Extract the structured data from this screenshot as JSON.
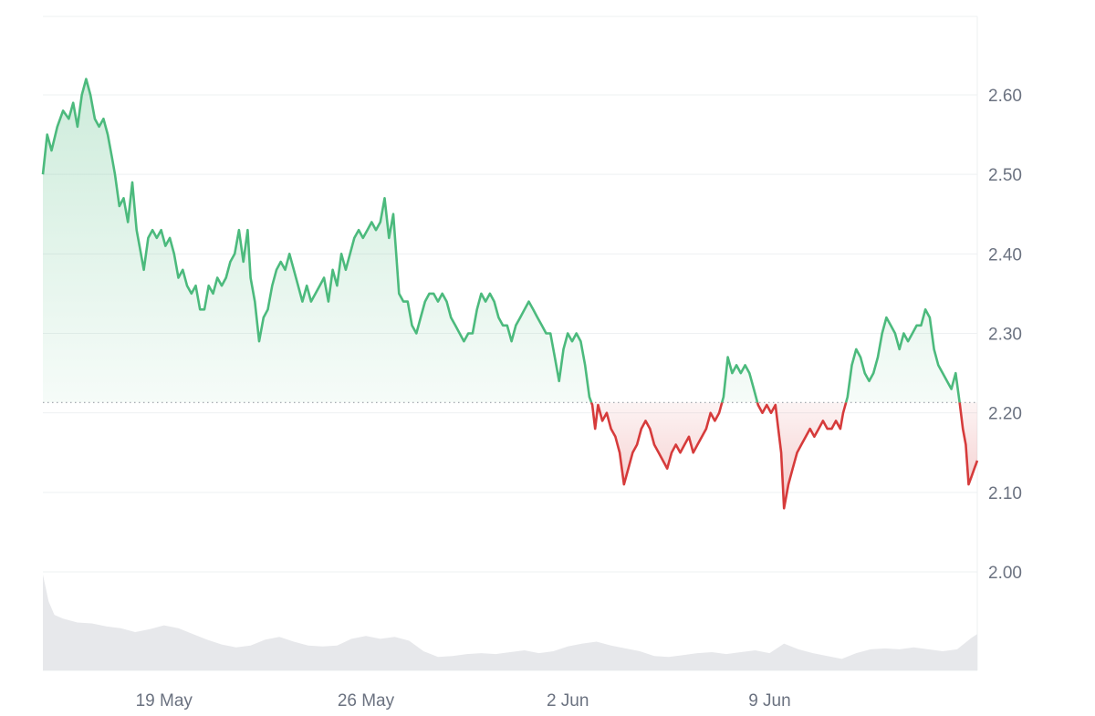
{
  "chart_data": {
    "type": "line",
    "title": "",
    "xlabel": "",
    "ylabel": "",
    "baseline": 2.213,
    "ylim": [
      1.95,
      2.68
    ],
    "y_ticks": [
      2.0,
      2.1,
      2.2,
      2.3,
      2.4,
      2.5,
      2.6
    ],
    "y_tick_labels": [
      "2.00",
      "2.10",
      "2.20",
      "2.30",
      "2.40",
      "2.50",
      "2.60"
    ],
    "x_ticks": [
      {
        "label": "19 May",
        "day": 19.0
      },
      {
        "label": "26 May",
        "day": 26.0
      },
      {
        "label": "2 Jun",
        "day": 33.0
      },
      {
        "label": "9 Jun",
        "day": 40.0
      }
    ],
    "grid": true,
    "colors": {
      "up": "#4cba7d",
      "down": "#d63b3b",
      "volume": "#e7e8eb",
      "grid": "#eef0f2",
      "baseline": "#9aa0a6"
    },
    "series": [
      {
        "values": [
          [
            14.8,
            2.5
          ],
          [
            14.95,
            2.55
          ],
          [
            15.1,
            2.53
          ],
          [
            15.3,
            2.56
          ],
          [
            15.5,
            2.58
          ],
          [
            15.7,
            2.57
          ],
          [
            15.85,
            2.59
          ],
          [
            16.0,
            2.56
          ],
          [
            16.15,
            2.6
          ],
          [
            16.3,
            2.62
          ],
          [
            16.45,
            2.6
          ],
          [
            16.6,
            2.57
          ],
          [
            16.75,
            2.56
          ],
          [
            16.9,
            2.57
          ],
          [
            17.05,
            2.55
          ],
          [
            17.2,
            2.52
          ],
          [
            17.3,
            2.5
          ],
          [
            17.45,
            2.46
          ],
          [
            17.6,
            2.47
          ],
          [
            17.75,
            2.44
          ],
          [
            17.9,
            2.49
          ],
          [
            18.05,
            2.43
          ],
          [
            18.15,
            2.41
          ],
          [
            18.3,
            2.38
          ],
          [
            18.45,
            2.42
          ],
          [
            18.6,
            2.43
          ],
          [
            18.75,
            2.42
          ],
          [
            18.9,
            2.43
          ],
          [
            19.05,
            2.41
          ],
          [
            19.2,
            2.42
          ],
          [
            19.35,
            2.4
          ],
          [
            19.5,
            2.37
          ],
          [
            19.65,
            2.38
          ],
          [
            19.8,
            2.36
          ],
          [
            19.95,
            2.35
          ],
          [
            20.1,
            2.36
          ],
          [
            20.25,
            2.33
          ],
          [
            20.4,
            2.33
          ],
          [
            20.55,
            2.36
          ],
          [
            20.7,
            2.35
          ],
          [
            20.85,
            2.37
          ],
          [
            21.0,
            2.36
          ],
          [
            21.15,
            2.37
          ],
          [
            21.3,
            2.39
          ],
          [
            21.45,
            2.4
          ],
          [
            21.6,
            2.43
          ],
          [
            21.75,
            2.39
          ],
          [
            21.9,
            2.43
          ],
          [
            22.0,
            2.37
          ],
          [
            22.15,
            2.34
          ],
          [
            22.3,
            2.29
          ],
          [
            22.45,
            2.32
          ],
          [
            22.6,
            2.33
          ],
          [
            22.75,
            2.36
          ],
          [
            22.9,
            2.38
          ],
          [
            23.05,
            2.39
          ],
          [
            23.2,
            2.38
          ],
          [
            23.35,
            2.4
          ],
          [
            23.5,
            2.38
          ],
          [
            23.65,
            2.36
          ],
          [
            23.8,
            2.34
          ],
          [
            23.95,
            2.36
          ],
          [
            24.1,
            2.34
          ],
          [
            24.25,
            2.35
          ],
          [
            24.4,
            2.36
          ],
          [
            24.55,
            2.37
          ],
          [
            24.7,
            2.34
          ],
          [
            24.85,
            2.38
          ],
          [
            25.0,
            2.36
          ],
          [
            25.15,
            2.4
          ],
          [
            25.3,
            2.38
          ],
          [
            25.45,
            2.4
          ],
          [
            25.6,
            2.42
          ],
          [
            25.75,
            2.43
          ],
          [
            25.9,
            2.42
          ],
          [
            26.05,
            2.43
          ],
          [
            26.2,
            2.44
          ],
          [
            26.35,
            2.43
          ],
          [
            26.5,
            2.44
          ],
          [
            26.65,
            2.47
          ],
          [
            26.8,
            2.42
          ],
          [
            26.95,
            2.45
          ],
          [
            27.05,
            2.4
          ],
          [
            27.15,
            2.35
          ],
          [
            27.3,
            2.34
          ],
          [
            27.45,
            2.34
          ],
          [
            27.6,
            2.31
          ],
          [
            27.75,
            2.3
          ],
          [
            27.9,
            2.32
          ],
          [
            28.05,
            2.34
          ],
          [
            28.2,
            2.35
          ],
          [
            28.35,
            2.35
          ],
          [
            28.5,
            2.34
          ],
          [
            28.65,
            2.35
          ],
          [
            28.8,
            2.34
          ],
          [
            28.95,
            2.32
          ],
          [
            29.1,
            2.31
          ],
          [
            29.25,
            2.3
          ],
          [
            29.4,
            2.29
          ],
          [
            29.55,
            2.3
          ],
          [
            29.7,
            2.3
          ],
          [
            29.85,
            2.33
          ],
          [
            30.0,
            2.35
          ],
          [
            30.15,
            2.34
          ],
          [
            30.3,
            2.35
          ],
          [
            30.45,
            2.34
          ],
          [
            30.6,
            2.32
          ],
          [
            30.75,
            2.31
          ],
          [
            30.9,
            2.31
          ],
          [
            31.05,
            2.29
          ],
          [
            31.2,
            2.31
          ],
          [
            31.35,
            2.32
          ],
          [
            31.5,
            2.33
          ],
          [
            31.65,
            2.34
          ],
          [
            31.8,
            2.33
          ],
          [
            31.95,
            2.32
          ],
          [
            32.1,
            2.31
          ],
          [
            32.25,
            2.3
          ],
          [
            32.4,
            2.3
          ],
          [
            32.55,
            2.27
          ],
          [
            32.7,
            2.24
          ],
          [
            32.85,
            2.28
          ],
          [
            33.0,
            2.3
          ],
          [
            33.15,
            2.29
          ],
          [
            33.3,
            2.3
          ],
          [
            33.45,
            2.29
          ],
          [
            33.6,
            2.26
          ],
          [
            33.75,
            2.22
          ],
          [
            33.85,
            2.21
          ],
          [
            33.95,
            2.18
          ],
          [
            34.05,
            2.21
          ],
          [
            34.2,
            2.19
          ],
          [
            34.35,
            2.2
          ],
          [
            34.5,
            2.18
          ],
          [
            34.65,
            2.17
          ],
          [
            34.8,
            2.15
          ],
          [
            34.95,
            2.11
          ],
          [
            35.1,
            2.13
          ],
          [
            35.25,
            2.15
          ],
          [
            35.4,
            2.16
          ],
          [
            35.55,
            2.18
          ],
          [
            35.7,
            2.19
          ],
          [
            35.85,
            2.18
          ],
          [
            36.0,
            2.16
          ],
          [
            36.15,
            2.15
          ],
          [
            36.3,
            2.14
          ],
          [
            36.45,
            2.13
          ],
          [
            36.6,
            2.15
          ],
          [
            36.75,
            2.16
          ],
          [
            36.9,
            2.15
          ],
          [
            37.05,
            2.16
          ],
          [
            37.2,
            2.17
          ],
          [
            37.35,
            2.15
          ],
          [
            37.5,
            2.16
          ],
          [
            37.65,
            2.17
          ],
          [
            37.8,
            2.18
          ],
          [
            37.95,
            2.2
          ],
          [
            38.1,
            2.19
          ],
          [
            38.25,
            2.2
          ],
          [
            38.4,
            2.22
          ],
          [
            38.55,
            2.27
          ],
          [
            38.7,
            2.25
          ],
          [
            38.85,
            2.26
          ],
          [
            39.0,
            2.25
          ],
          [
            39.15,
            2.26
          ],
          [
            39.3,
            2.25
          ],
          [
            39.45,
            2.23
          ],
          [
            39.6,
            2.21
          ],
          [
            39.75,
            2.2
          ],
          [
            39.9,
            2.21
          ],
          [
            40.05,
            2.2
          ],
          [
            40.2,
            2.21
          ],
          [
            40.3,
            2.18
          ],
          [
            40.4,
            2.15
          ],
          [
            40.5,
            2.08
          ],
          [
            40.65,
            2.11
          ],
          [
            40.8,
            2.13
          ],
          [
            40.95,
            2.15
          ],
          [
            41.1,
            2.16
          ],
          [
            41.25,
            2.17
          ],
          [
            41.4,
            2.18
          ],
          [
            41.55,
            2.17
          ],
          [
            41.7,
            2.18
          ],
          [
            41.85,
            2.19
          ],
          [
            42.0,
            2.18
          ],
          [
            42.15,
            2.18
          ],
          [
            42.3,
            2.19
          ],
          [
            42.45,
            2.18
          ],
          [
            42.55,
            2.2
          ],
          [
            42.7,
            2.22
          ],
          [
            42.85,
            2.26
          ],
          [
            43.0,
            2.28
          ],
          [
            43.15,
            2.27
          ],
          [
            43.3,
            2.25
          ],
          [
            43.45,
            2.24
          ],
          [
            43.6,
            2.25
          ],
          [
            43.75,
            2.27
          ],
          [
            43.9,
            2.3
          ],
          [
            44.05,
            2.32
          ],
          [
            44.2,
            2.31
          ],
          [
            44.35,
            2.3
          ],
          [
            44.5,
            2.28
          ],
          [
            44.65,
            2.3
          ],
          [
            44.8,
            2.29
          ],
          [
            44.95,
            2.3
          ],
          [
            45.1,
            2.31
          ],
          [
            45.25,
            2.31
          ],
          [
            45.4,
            2.33
          ],
          [
            45.55,
            2.32
          ],
          [
            45.7,
            2.28
          ],
          [
            45.85,
            2.26
          ],
          [
            46.0,
            2.25
          ],
          [
            46.15,
            2.24
          ],
          [
            46.3,
            2.23
          ],
          [
            46.45,
            2.25
          ],
          [
            46.6,
            2.21
          ],
          [
            46.7,
            2.18
          ],
          [
            46.8,
            2.16
          ],
          [
            46.9,
            2.11
          ],
          [
            47.0,
            2.12
          ],
          [
            47.1,
            2.13
          ],
          [
            47.2,
            2.14
          ]
        ]
      }
    ],
    "volume": [
      [
        14.8,
        1.0
      ],
      [
        15.0,
        0.72
      ],
      [
        15.2,
        0.58
      ],
      [
        15.5,
        0.54
      ],
      [
        16.0,
        0.5
      ],
      [
        16.5,
        0.49
      ],
      [
        17.0,
        0.46
      ],
      [
        17.5,
        0.44
      ],
      [
        18.0,
        0.4
      ],
      [
        18.5,
        0.43
      ],
      [
        19.0,
        0.47
      ],
      [
        19.5,
        0.44
      ],
      [
        20.0,
        0.38
      ],
      [
        20.5,
        0.32
      ],
      [
        21.0,
        0.27
      ],
      [
        21.5,
        0.24
      ],
      [
        22.0,
        0.26
      ],
      [
        22.5,
        0.32
      ],
      [
        23.0,
        0.35
      ],
      [
        23.5,
        0.3
      ],
      [
        24.0,
        0.26
      ],
      [
        24.5,
        0.25
      ],
      [
        25.0,
        0.26
      ],
      [
        25.5,
        0.33
      ],
      [
        26.0,
        0.36
      ],
      [
        26.5,
        0.33
      ],
      [
        27.0,
        0.35
      ],
      [
        27.5,
        0.31
      ],
      [
        28.0,
        0.2
      ],
      [
        28.5,
        0.14
      ],
      [
        29.0,
        0.15
      ],
      [
        29.5,
        0.17
      ],
      [
        30.0,
        0.18
      ],
      [
        30.5,
        0.17
      ],
      [
        31.0,
        0.19
      ],
      [
        31.5,
        0.21
      ],
      [
        32.0,
        0.18
      ],
      [
        32.5,
        0.2
      ],
      [
        33.0,
        0.25
      ],
      [
        33.5,
        0.28
      ],
      [
        34.0,
        0.3
      ],
      [
        34.5,
        0.26
      ],
      [
        35.0,
        0.23
      ],
      [
        35.5,
        0.2
      ],
      [
        36.0,
        0.15
      ],
      [
        36.5,
        0.14
      ],
      [
        37.0,
        0.16
      ],
      [
        37.5,
        0.18
      ],
      [
        38.0,
        0.19
      ],
      [
        38.5,
        0.17
      ],
      [
        39.0,
        0.19
      ],
      [
        39.5,
        0.21
      ],
      [
        40.0,
        0.18
      ],
      [
        40.5,
        0.28
      ],
      [
        41.0,
        0.22
      ],
      [
        41.5,
        0.18
      ],
      [
        42.0,
        0.15
      ],
      [
        42.5,
        0.12
      ],
      [
        43.0,
        0.18
      ],
      [
        43.5,
        0.22
      ],
      [
        44.0,
        0.23
      ],
      [
        44.5,
        0.22
      ],
      [
        45.0,
        0.24
      ],
      [
        45.5,
        0.22
      ],
      [
        46.0,
        0.2
      ],
      [
        46.5,
        0.22
      ],
      [
        47.0,
        0.34
      ],
      [
        47.2,
        0.38
      ]
    ]
  }
}
